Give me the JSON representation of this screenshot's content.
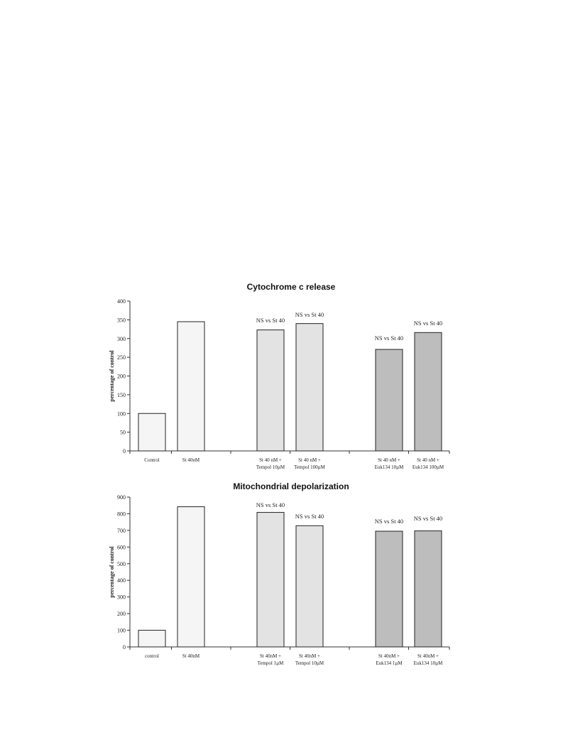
{
  "chart_data": [
    {
      "type": "bar",
      "title": "Cytochrome c release",
      "ylabel": "percentage of control",
      "ylim": [
        0,
        400
      ],
      "yticks": [
        0,
        50,
        100,
        150,
        200,
        250,
        300,
        350,
        400
      ],
      "categories": [
        [
          "Control"
        ],
        [
          "St 40nM"
        ],
        [
          "St 40 nM +",
          "Tempol 10µM"
        ],
        [
          "St 40 nM +",
          "Tempol 100µM"
        ],
        [
          "St 40 nM +",
          "Euk134 10µM"
        ],
        [
          "St 40 nM +",
          "Euk134 100µM"
        ]
      ],
      "values": [
        100,
        345,
        323,
        340,
        271,
        316
      ],
      "annotations": [
        "",
        "",
        "NS vs St 40",
        "NS vs St 40",
        "NS vs St 40",
        "NS vs St 40"
      ],
      "grid": false,
      "colors": [
        "#f5f5f5",
        "#f5f5f5",
        "#e3e3e3",
        "#e3e3e3",
        "#bdbdbd",
        "#bdbdbd"
      ]
    },
    {
      "type": "bar",
      "title": "Mitochondrial depolarization",
      "ylabel": "percentage of control",
      "ylim": [
        0,
        900
      ],
      "yticks": [
        0,
        100,
        200,
        300,
        400,
        500,
        600,
        700,
        800,
        900
      ],
      "categories": [
        [
          "control"
        ],
        [
          "St 40nM"
        ],
        [
          "St 40nM +",
          "Tempol 1µM"
        ],
        [
          "St 40nM +",
          "Tempol 10µM"
        ],
        [
          "St 40nM +",
          "Euk134 1µM"
        ],
        [
          "St 40nM +",
          "Euk134 10µM"
        ]
      ],
      "values": [
        100,
        842,
        808,
        728,
        695,
        697
      ],
      "annotations": [
        "",
        "",
        "NS vs St 40",
        "NS vs St 40",
        "NS vs St 40",
        "NS vs St 40"
      ],
      "grid": false,
      "colors": [
        "#f5f5f5",
        "#f5f5f5",
        "#e3e3e3",
        "#e3e3e3",
        "#bdbdbd",
        "#bdbdbd"
      ]
    }
  ]
}
